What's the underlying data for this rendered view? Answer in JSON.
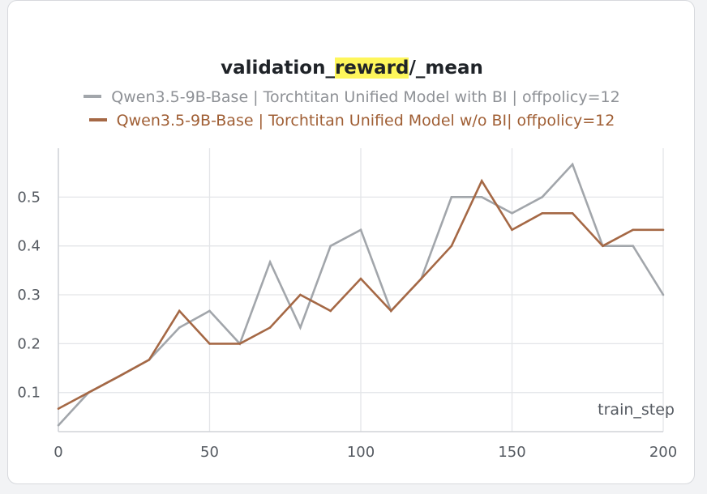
{
  "title_prefix": "validation_",
  "title_highlight": "reward",
  "title_suffix": "/_mean",
  "colors": {
    "series1": "#a2a6ab",
    "series2": "#a56845",
    "grid": "#e3e5e8",
    "highlight": "#fef65b"
  },
  "chart_data": {
    "type": "line",
    "title": "validation_reward/_mean",
    "xlabel": "train_step",
    "ylabel": "",
    "xlim": [
      0,
      200
    ],
    "ylim": [
      0.02,
      0.6
    ],
    "xticks": [
      0,
      50,
      100,
      150,
      200
    ],
    "yticks": [
      0.1,
      0.2,
      0.3,
      0.4,
      0.5
    ],
    "legend_position": "top-center",
    "grid": true,
    "series": [
      {
        "name": "Qwen3.5-9B-Base | Torchtitan Unified Model with BI | offpolicy=12",
        "color": "#a2a6ab",
        "x": [
          0,
          10,
          20,
          30,
          40,
          50,
          60,
          70,
          80,
          90,
          100,
          110,
          120,
          130,
          140,
          150,
          160,
          170,
          180,
          190,
          200
        ],
        "y": [
          0.033,
          0.1,
          0.133,
          0.167,
          0.233,
          0.267,
          0.2,
          0.367,
          0.233,
          0.4,
          0.433,
          0.267,
          0.333,
          0.5,
          0.5,
          0.467,
          0.5,
          0.567,
          0.4,
          0.4,
          0.3
        ]
      },
      {
        "name": "Qwen3.5-9B-Base | Torchtitan Unified Model w/o BI| offpolicy=12",
        "color": "#a56845",
        "x": [
          0,
          10,
          20,
          30,
          40,
          50,
          60,
          70,
          80,
          90,
          100,
          110,
          120,
          130,
          140,
          150,
          160,
          170,
          180,
          190,
          200
        ],
        "y": [
          0.067,
          0.1,
          0.133,
          0.167,
          0.267,
          0.2,
          0.2,
          0.233,
          0.3,
          0.267,
          0.333,
          0.267,
          0.333,
          0.4,
          0.533,
          0.433,
          0.467,
          0.467,
          0.4,
          0.433,
          0.433
        ]
      }
    ]
  }
}
